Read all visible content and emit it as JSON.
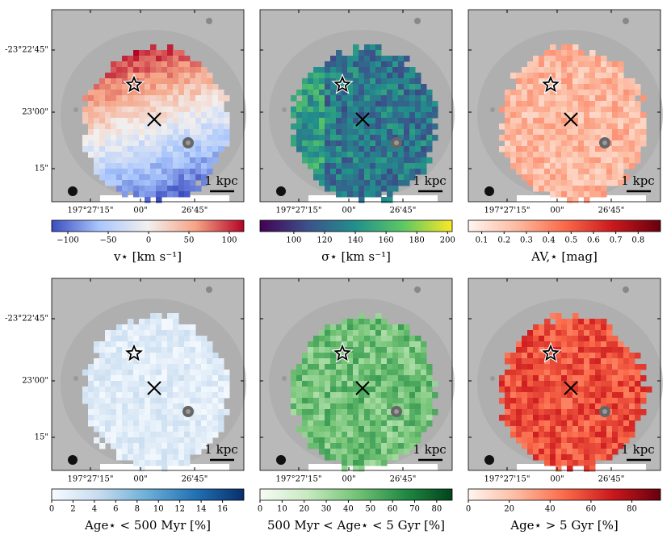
{
  "x_tick_labels": [
    "197°27'15\"",
    "00\"",
    "26'45\""
  ],
  "y_tick_labels": [
    "-23°22'45\"",
    "23'00\"",
    "15\""
  ],
  "scale_label": "1 kpc",
  "panels": [
    {
      "colorbar": {
        "label": "v⋆ [km s⁻¹]",
        "lim": [
          -120,
          118
        ],
        "colors": [
          "#3b4cc0",
          "#aac7fd",
          "#f2f0ef",
          "#f6a385",
          "#b40426"
        ],
        "ticks": [
          {
            "value": -100,
            "label": "−100"
          },
          {
            "value": -50,
            "label": "−50"
          },
          0,
          50,
          100
        ]
      }
    },
    {
      "colorbar": {
        "label": "σ⋆ [km s⁻¹]",
        "lim": [
          78,
          203
        ],
        "colors": [
          "#440154",
          "#3b528b",
          "#21918c",
          "#5ec962",
          "#fde725"
        ],
        "ticks": [
          100,
          120,
          140,
          160,
          180,
          200
        ]
      }
    },
    {
      "colorbar": {
        "label": "AV,⋆ [mag]",
        "lim": [
          0.04,
          0.9
        ],
        "colors": [
          "#fff5f0",
          "#fcbba1",
          "#fb6a4a",
          "#cb181d",
          "#67000d"
        ],
        "ticks": [
          0.1,
          0.2,
          0.3,
          0.4,
          0.5,
          0.6,
          0.7,
          0.8
        ]
      }
    },
    {
      "colorbar": {
        "label": "Age⋆ < 500 Myr [%]",
        "lim": [
          0,
          18
        ],
        "colors": [
          "#f7fbff",
          "#c6dbef",
          "#6baed6",
          "#2171b5",
          "#08306b"
        ],
        "ticks": [
          0,
          2,
          4,
          6,
          8,
          10,
          12,
          14,
          16
        ]
      }
    },
    {
      "colorbar": {
        "label": "500 Myr < Age⋆ < 5 Gyr [%]",
        "lim": [
          0,
          87
        ],
        "colors": [
          "#f7fcf5",
          "#c7e9c0",
          "#74c476",
          "#238b45",
          "#00441b"
        ],
        "ticks": [
          0,
          10,
          20,
          30,
          40,
          50,
          60,
          70,
          80
        ]
      }
    },
    {
      "colorbar": {
        "label": "Age⋆ > 5 Gyr [%]",
        "lim": [
          0,
          94
        ],
        "colors": [
          "#fff5f0",
          "#fcbba1",
          "#fb6a4a",
          "#cb181d",
          "#67000d"
        ],
        "ticks": [
          0,
          20,
          40,
          60,
          80
        ]
      }
    }
  ]
}
